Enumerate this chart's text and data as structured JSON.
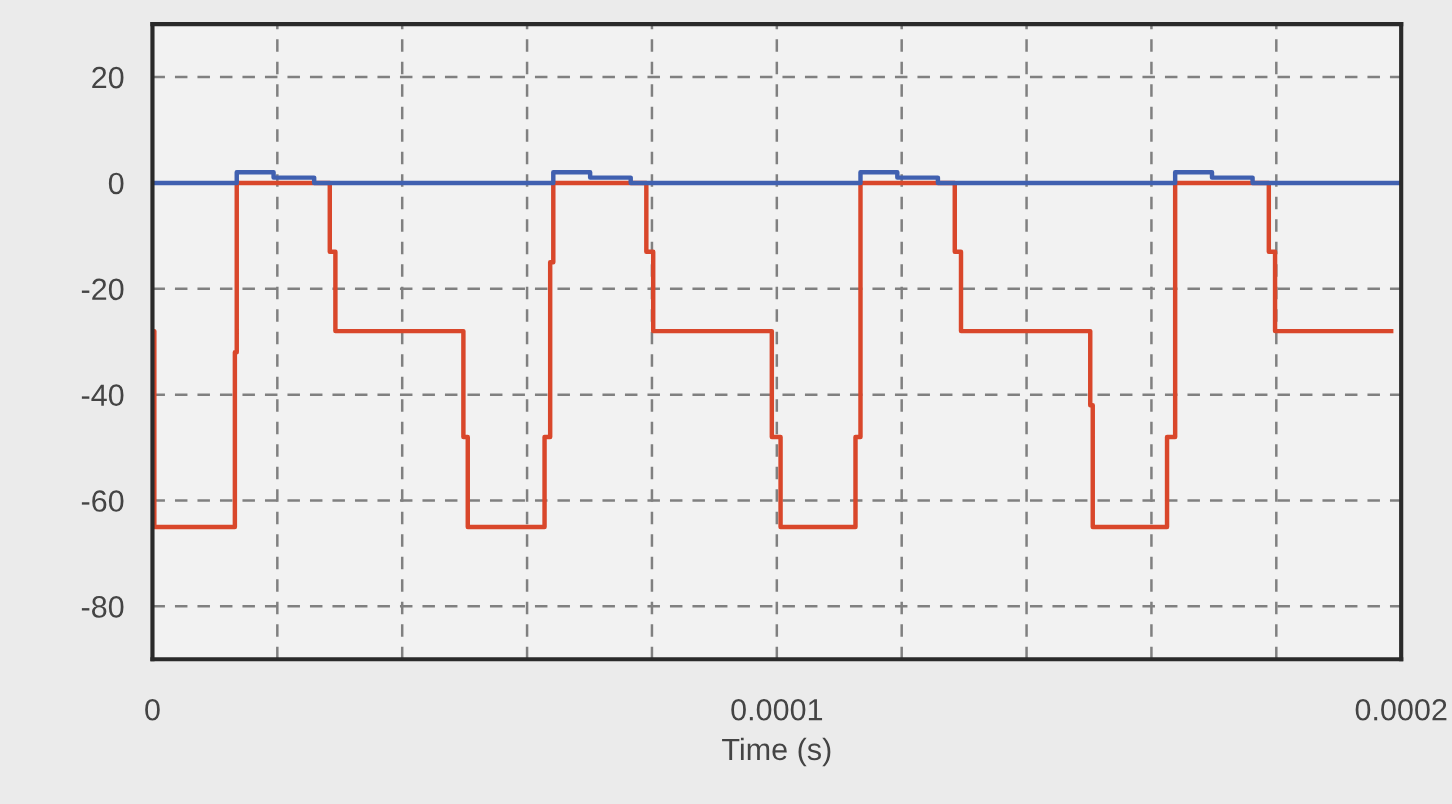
{
  "chart_data": {
    "type": "line",
    "xlabel": "Time (s)",
    "xlim": [
      0,
      0.0002
    ],
    "ylim": [
      -90,
      30
    ],
    "xticks": [
      0,
      {
        "value": 2e-05,
        "label": null
      },
      {
        "value": 4e-05,
        "label": null
      },
      {
        "value": 6e-05,
        "label": null
      },
      {
        "value": 8e-05,
        "label": null
      },
      {
        "value": 0.0001,
        "label": "0.0001"
      },
      {
        "value": 0.00012,
        "label": null
      },
      {
        "value": 0.00014,
        "label": null
      },
      {
        "value": 0.00016,
        "label": null
      },
      {
        "value": 0.00018,
        "label": null
      },
      {
        "value": 0.0002,
        "label": "0.0002"
      }
    ],
    "yticks": [
      -80,
      -60,
      -40,
      -20,
      0,
      20
    ],
    "grid": true,
    "line_style": "solid",
    "marker": "none",
    "series": [
      {
        "color": "#d9472b",
        "x": [
          0,
          3e-07,
          3e-07,
          1.32e-05,
          1.32e-05,
          1.35e-05,
          1.35e-05,
          2.84e-05,
          2.84e-05,
          2.93e-05,
          2.93e-05,
          4.98e-05,
          4.98e-05,
          5.05e-05,
          5.05e-05,
          6.28e-05,
          6.28e-05,
          6.37e-05,
          6.37e-05,
          6.42e-05,
          6.42e-05,
          7.91e-05,
          7.91e-05,
          8.02e-05,
          8.02e-05,
          9.92e-05,
          9.92e-05,
          0.0001006,
          0.0001006,
          0.0001126,
          0.0001126,
          0.0001134,
          0.0001134,
          0.0001285,
          0.0001285,
          0.0001295,
          0.0001295,
          0.0001502,
          0.0001502,
          0.0001506,
          0.0001506,
          0.0001625,
          0.0001625,
          0.0001638,
          0.0001638,
          0.0001788,
          0.0001788,
          0.0001798,
          0.0001798,
          0.0001984
        ],
        "values": [
          -28,
          -28,
          -65,
          -65,
          -32,
          -32,
          0,
          0,
          -13,
          -13,
          -28,
          -28,
          -48,
          -48,
          -65,
          -65,
          -48,
          -48,
          -15,
          -15,
          0,
          0,
          -13,
          -13,
          -28,
          -28,
          -48,
          -48,
          -65,
          -65,
          -48,
          -48,
          0,
          0,
          -13,
          -13,
          -28,
          -28,
          -42,
          -42,
          -65,
          -65,
          -48,
          -48,
          0,
          0,
          -13,
          -13,
          -28,
          -28
        ]
      },
      {
        "color": "#4060b0",
        "x": [
          0,
          1.35e-05,
          1.35e-05,
          1.94e-05,
          1.94e-05,
          2.59e-05,
          2.59e-05,
          6.42e-05,
          6.42e-05,
          7.01e-05,
          7.01e-05,
          7.66e-05,
          7.66e-05,
          0.0001134,
          0.0001134,
          0.0001193,
          0.0001193,
          0.0001258,
          0.0001258,
          0.0001638,
          0.0001638,
          0.0001697,
          0.0001697,
          0.0001762,
          0.0001762,
          0.0002
        ],
        "values": [
          0,
          0,
          2,
          2,
          1,
          1,
          0,
          0,
          2,
          2,
          1,
          1,
          0,
          0,
          2,
          2,
          1,
          1,
          0,
          0,
          2,
          2,
          1,
          1,
          0,
          0
        ]
      }
    ]
  }
}
